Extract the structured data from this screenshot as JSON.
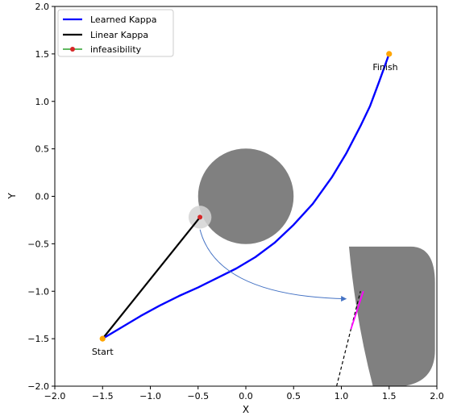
{
  "chart_data": {
    "type": "line",
    "xlabel": "X",
    "ylabel": "Y",
    "xlim": [
      -2.0,
      2.0
    ],
    "ylim": [
      -2.0,
      2.0
    ],
    "xticks": [
      "−2.0",
      "−1.5",
      "−1.0",
      "−0.5",
      "0.0",
      "0.5",
      "1.0",
      "1.5",
      "2.0"
    ],
    "yticks": [
      "−2.0",
      "−1.5",
      "−1.0",
      "−0.5",
      "0.0",
      "0.5",
      "1.0",
      "1.5",
      "2.0"
    ],
    "grid": false,
    "legend_position": "top-left",
    "series": [
      {
        "name": "Learned Kappa",
        "color": "#0000ff",
        "x": [
          -1.5,
          -1.3,
          -1.1,
          -0.9,
          -0.7,
          -0.5,
          -0.3,
          -0.1,
          0.1,
          0.3,
          0.5,
          0.7,
          0.9,
          1.05,
          1.2,
          1.3,
          1.4,
          1.5
        ],
        "y": [
          -1.5,
          -1.38,
          -1.26,
          -1.15,
          -1.05,
          -0.96,
          -0.86,
          -0.76,
          -0.64,
          -0.49,
          -0.3,
          -0.08,
          0.2,
          0.45,
          0.74,
          0.95,
          1.22,
          1.5
        ]
      },
      {
        "name": "Linear Kappa",
        "color": "#000000",
        "x": [
          -1.5,
          -0.48
        ],
        "y": [
          -1.5,
          -0.22
        ]
      },
      {
        "name": "infeasibility",
        "color": "#2ca02c",
        "marker_color": "#d62728",
        "x": [
          -0.48
        ],
        "y": [
          -0.22
        ]
      }
    ],
    "points": [
      {
        "x": -1.5,
        "y": -1.5,
        "color": "#ffa500"
      },
      {
        "x": 1.5,
        "y": 1.5,
        "color": "#ffa500"
      }
    ],
    "annotations": [
      {
        "text": "Start",
        "x": -1.5,
        "y": -1.67
      },
      {
        "text": "Finish",
        "x": 1.46,
        "y": 1.33
      }
    ],
    "obstacles": [
      {
        "shape": "circle",
        "center": [
          0.0,
          0.0
        ],
        "radius": 0.5,
        "color": "#808080"
      },
      {
        "shape": "circle",
        "center": [
          -0.48,
          -0.22
        ],
        "radius": 0.12,
        "color": "#d3d3d3"
      },
      {
        "shape": "rounded-region",
        "x_range": [
          1.08,
          2.0
        ],
        "y_range": [
          -2.0,
          -0.53
        ],
        "color": "#808080"
      }
    ],
    "arrow": {
      "from": [
        -0.48,
        -0.35
      ],
      "to": [
        1.05,
        -1.08
      ],
      "color": "#4472c4"
    },
    "dashed_line": {
      "x": [
        0.95,
        1.1,
        1.2
      ],
      "y": [
        -2.0,
        -1.4,
        -1.0
      ],
      "color": "#000000"
    },
    "magenta_segment": {
      "x": [
        1.1,
        1.23
      ],
      "y": [
        -1.4,
        -1.0
      ],
      "color": "#ff00ff"
    }
  }
}
